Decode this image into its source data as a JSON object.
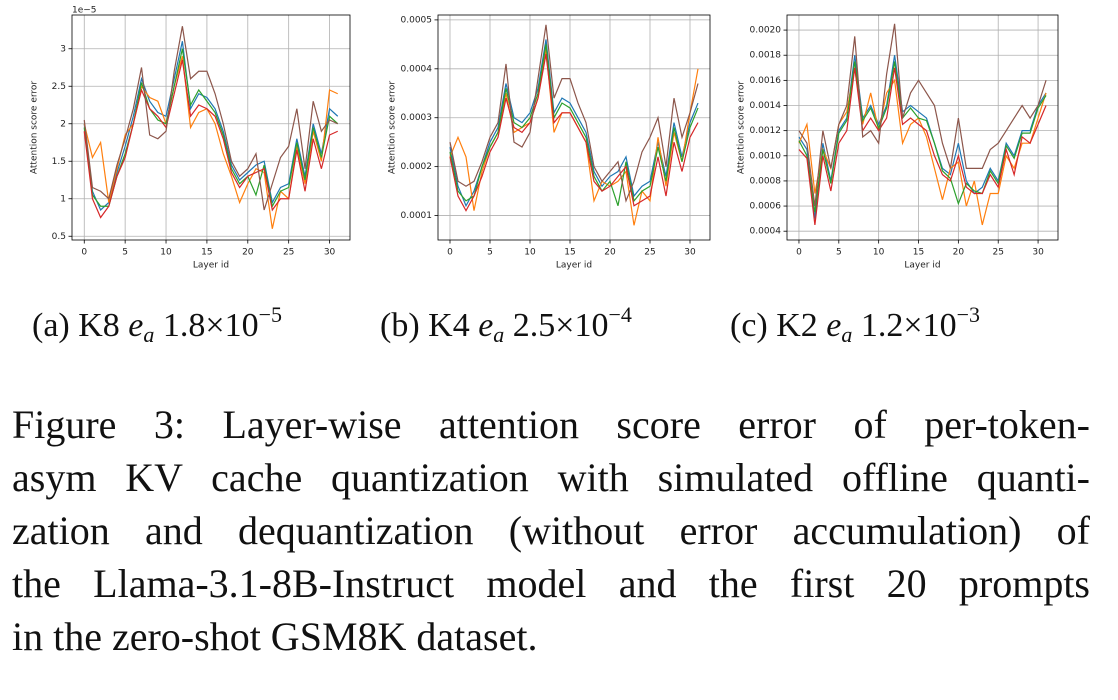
{
  "chart_data": [
    {
      "type": "line",
      "y_label": "Attention score error",
      "x_label": "Layer id",
      "offset_label": "1e−5",
      "xlim": [
        -1.5,
        32.5
      ],
      "xticks": [
        0,
        5,
        10,
        15,
        20,
        25,
        30
      ],
      "ylim": [
        0.45,
        3.45
      ],
      "yticks": [
        0.5,
        1.0,
        1.5,
        2.0,
        2.5,
        3.0
      ],
      "grid": true,
      "x": [
        0,
        1,
        2,
        3,
        4,
        5,
        6,
        7,
        8,
        9,
        10,
        11,
        12,
        13,
        14,
        15,
        16,
        17,
        18,
        19,
        20,
        21,
        22,
        23,
        24,
        25,
        26,
        27,
        28,
        29,
        30,
        31
      ],
      "series": [
        {
          "color": "#1f77b4",
          "values": [
            2.0,
            1.1,
            0.85,
            0.95,
            1.35,
            1.7,
            2.1,
            2.6,
            2.3,
            2.15,
            2.1,
            2.6,
            3.1,
            2.2,
            2.4,
            2.35,
            2.2,
            1.9,
            1.45,
            1.25,
            1.35,
            1.45,
            1.5,
            0.95,
            1.15,
            1.2,
            1.8,
            1.3,
            2.0,
            1.6,
            2.2,
            2.1
          ]
        },
        {
          "color": "#ff7f0e",
          "values": [
            2.0,
            1.55,
            1.75,
            0.95,
            1.4,
            1.85,
            2.0,
            2.5,
            2.35,
            2.3,
            2.0,
            2.5,
            2.9,
            1.95,
            2.15,
            2.2,
            2.0,
            1.6,
            1.3,
            0.95,
            1.2,
            1.4,
            1.35,
            0.6,
            1.1,
            1.0,
            1.7,
            1.2,
            1.9,
            1.5,
            2.45,
            2.4
          ]
        },
        {
          "color": "#2ca02c",
          "values": [
            1.95,
            1.05,
            0.9,
            0.9,
            1.3,
            1.6,
            2.0,
            2.55,
            2.2,
            2.05,
            2.0,
            2.5,
            3.0,
            2.25,
            2.45,
            2.3,
            2.15,
            1.85,
            1.4,
            1.2,
            1.3,
            1.05,
            1.45,
            0.9,
            1.1,
            1.15,
            1.75,
            1.25,
            1.95,
            1.55,
            2.1,
            2.0
          ]
        },
        {
          "color": "#d62728",
          "values": [
            1.9,
            1.0,
            0.75,
            0.9,
            1.3,
            1.55,
            2.0,
            2.45,
            2.2,
            2.1,
            1.95,
            2.4,
            2.85,
            2.1,
            2.25,
            2.2,
            2.1,
            1.8,
            1.35,
            1.15,
            1.3,
            1.35,
            1.4,
            0.85,
            1.0,
            1.0,
            1.65,
            1.1,
            1.8,
            1.4,
            1.85,
            1.9
          ]
        },
        {
          "color": "#8c564b",
          "values": [
            2.05,
            1.15,
            1.1,
            1.0,
            1.45,
            1.8,
            2.2,
            2.75,
            1.85,
            1.8,
            1.9,
            2.7,
            3.3,
            2.6,
            2.7,
            2.7,
            2.4,
            2.0,
            1.5,
            1.3,
            1.4,
            1.6,
            0.85,
            1.2,
            1.55,
            1.7,
            2.2,
            1.4,
            2.3,
            1.9,
            2.05,
            2.0
          ]
        }
      ],
      "caption": {
        "label": "(a) K8",
        "symbol": "e",
        "subscript": "a",
        "value": "1.8×10",
        "exponent": "−5"
      }
    },
    {
      "type": "line",
      "y_label": "Attention score error",
      "x_label": "Layer id",
      "xlim": [
        -1.5,
        32.5
      ],
      "xticks": [
        0,
        5,
        10,
        15,
        20,
        25,
        30
      ],
      "ylim": [
        5e-05,
        0.00051
      ],
      "yticks": [
        0.0001,
        0.0002,
        0.0003,
        0.0004,
        0.0005
      ],
      "grid": true,
      "x": [
        0,
        1,
        2,
        3,
        4,
        5,
        6,
        7,
        8,
        9,
        10,
        11,
        12,
        13,
        14,
        15,
        16,
        17,
        18,
        19,
        20,
        21,
        22,
        23,
        24,
        25,
        26,
        27,
        28,
        29,
        30,
        31
      ],
      "series": [
        {
          "color": "#1f77b4",
          "values": [
            0.00024,
            0.00016,
            0.00012,
            0.00015,
            0.0002,
            0.00025,
            0.00028,
            0.00037,
            0.0003,
            0.00029,
            0.00031,
            0.00036,
            0.00046,
            0.00031,
            0.00034,
            0.00033,
            0.0003,
            0.00027,
            0.00019,
            0.00016,
            0.00018,
            0.00019,
            0.00022,
            0.00014,
            0.00016,
            0.00017,
            0.00025,
            0.00018,
            0.00029,
            0.00022,
            0.00029,
            0.00033
          ]
        },
        {
          "color": "#ff7f0e",
          "values": [
            0.00022,
            0.00026,
            0.00022,
            0.00011,
            0.00019,
            0.00024,
            0.00027,
            0.00035,
            0.00027,
            0.00028,
            0.00029,
            0.00034,
            0.00044,
            0.00027,
            0.00031,
            0.00031,
            0.00028,
            0.00025,
            0.00013,
            0.00017,
            0.00016,
            0.00017,
            0.00019,
            8e-05,
            0.00015,
            0.00013,
            0.00026,
            0.00016,
            0.00027,
            0.00021,
            0.00031,
            0.0004
          ]
        },
        {
          "color": "#2ca02c",
          "values": [
            0.00023,
            0.00015,
            0.00013,
            0.00014,
            0.0002,
            0.00024,
            0.00027,
            0.00036,
            0.00029,
            0.00028,
            0.0003,
            0.00035,
            0.00045,
            0.0003,
            0.00033,
            0.00032,
            0.00029,
            0.00026,
            0.00018,
            0.00015,
            0.00017,
            0.00012,
            0.00021,
            0.00013,
            0.00015,
            0.00016,
            0.00024,
            0.00017,
            0.00028,
            0.00021,
            0.00028,
            0.00032
          ]
        },
        {
          "color": "#d62728",
          "values": [
            0.00022,
            0.00014,
            0.00011,
            0.00014,
            0.00018,
            0.00023,
            0.00026,
            0.00034,
            0.00028,
            0.00027,
            0.00029,
            0.00034,
            0.00043,
            0.00029,
            0.00031,
            0.00031,
            0.00028,
            0.00025,
            0.00017,
            0.00015,
            0.00016,
            0.00018,
            0.0002,
            0.00012,
            0.00013,
            0.00014,
            0.00022,
            0.00014,
            0.00025,
            0.00019,
            0.00026,
            0.00029
          ]
        },
        {
          "color": "#8c564b",
          "values": [
            0.00025,
            0.00017,
            0.00016,
            0.00017,
            0.00021,
            0.00026,
            0.00029,
            0.00041,
            0.00025,
            0.00024,
            0.00027,
            0.00038,
            0.00049,
            0.00034,
            0.00038,
            0.00038,
            0.00033,
            0.00029,
            0.0002,
            0.00017,
            0.00019,
            0.00021,
            0.00013,
            0.00017,
            0.00023,
            0.00026,
            0.0003,
            0.0002,
            0.00034,
            0.00026,
            0.00031,
            0.00037
          ]
        }
      ],
      "caption": {
        "label": "(b) K4",
        "symbol": "e",
        "subscript": "a",
        "value": "2.5×10",
        "exponent": "−4"
      }
    },
    {
      "type": "line",
      "y_label": "Attention score error",
      "x_label": "Layer id",
      "xlim": [
        -1.5,
        32.5
      ],
      "xticks": [
        0,
        5,
        10,
        15,
        20,
        25,
        30
      ],
      "ylim": [
        0.00033,
        0.00212
      ],
      "yticks": [
        {
          "value": 0.0004,
          "label": "0.0004"
        },
        {
          "value": 0.0006,
          "label": "0.0006"
        },
        {
          "value": 0.0008,
          "label": "0.0008"
        },
        {
          "value": 0.001,
          "label": "0.0010"
        },
        {
          "value": 0.0012,
          "label": "0.0012"
        },
        {
          "value": 0.0014,
          "label": "0.0014"
        },
        {
          "value": 0.0016,
          "label": "0.0016"
        },
        {
          "value": 0.0018,
          "label": "0.0018"
        },
        {
          "value": 0.002,
          "label": "0.0020"
        }
      ],
      "grid": true,
      "x": [
        0,
        1,
        2,
        3,
        4,
        5,
        6,
        7,
        8,
        9,
        10,
        11,
        12,
        13,
        14,
        15,
        16,
        17,
        18,
        19,
        20,
        21,
        22,
        23,
        24,
        25,
        26,
        27,
        28,
        29,
        30,
        31
      ],
      "series": [
        {
          "color": "#1f77b4",
          "values": [
            0.00115,
            0.00105,
            0.0005,
            0.0011,
            0.0008,
            0.0012,
            0.0013,
            0.0018,
            0.0013,
            0.0014,
            0.00125,
            0.0014,
            0.0018,
            0.00135,
            0.0014,
            0.00135,
            0.0013,
            0.0011,
            0.0009,
            0.00085,
            0.0011,
            0.0008,
            0.0007,
            0.00075,
            0.0009,
            0.0008,
            0.0011,
            0.001,
            0.0012,
            0.0012,
            0.0014,
            0.0015
          ]
        },
        {
          "color": "#ff7f0e",
          "values": [
            0.0011,
            0.00125,
            0.0007,
            0.00105,
            0.0009,
            0.00125,
            0.00135,
            0.0017,
            0.00125,
            0.0015,
            0.0012,
            0.0015,
            0.0016,
            0.0011,
            0.00125,
            0.0013,
            0.00115,
            0.0009,
            0.00065,
            0.0009,
            0.00095,
            0.0006,
            0.0008,
            0.00045,
            0.0007,
            0.0007,
            0.001,
            0.0009,
            0.0011,
            0.0011,
            0.0013,
            0.0015
          ]
        },
        {
          "color": "#2ca02c",
          "values": [
            0.00112,
            0.001,
            0.00055,
            0.00105,
            0.00078,
            0.00118,
            0.00128,
            0.00175,
            0.00128,
            0.00138,
            0.00122,
            0.00138,
            0.00175,
            0.0013,
            0.00138,
            0.0013,
            0.00128,
            0.0011,
            0.00088,
            0.00082,
            0.00062,
            0.00078,
            0.00072,
            0.0007,
            0.00088,
            0.00078,
            0.00108,
            0.00098,
            0.00118,
            0.00118,
            0.00138,
            0.00148
          ]
        },
        {
          "color": "#d62728",
          "values": [
            0.00105,
            0.00098,
            0.00045,
            0.001,
            0.00072,
            0.0011,
            0.0012,
            0.0017,
            0.0012,
            0.0013,
            0.0012,
            0.0013,
            0.0017,
            0.00125,
            0.0013,
            0.00125,
            0.0012,
            0.001,
            0.00085,
            0.0008,
            0.001,
            0.00075,
            0.0007,
            0.0007,
            0.00085,
            0.00075,
            0.00105,
            0.00085,
            0.00115,
            0.0011,
            0.00125,
            0.0014
          ]
        },
        {
          "color": "#8c564b",
          "values": [
            0.0012,
            0.0011,
            0.0006,
            0.0012,
            0.0009,
            0.00125,
            0.0014,
            0.00195,
            0.00115,
            0.0012,
            0.0011,
            0.00165,
            0.00205,
            0.0013,
            0.0015,
            0.0016,
            0.0015,
            0.0014,
            0.0011,
            0.0009,
            0.0013,
            0.0009,
            0.0009,
            0.0009,
            0.00105,
            0.0011,
            0.0012,
            0.0013,
            0.0014,
            0.0013,
            0.0014,
            0.0016
          ]
        }
      ],
      "caption": {
        "label": "(c) K2",
        "symbol": "e",
        "subscript": "a",
        "value": "1.2×10",
        "exponent": "−3"
      }
    }
  ],
  "figure_caption": {
    "lines": [
      "Figure 3: Layer-wise attention score error of per-token-",
      "asym KV cache quantization with simulated offline quanti-",
      "zation and dequantization (without error accumulation) of",
      "the Llama-3.1-8B-Instruct model and the first 20 prompts",
      "in the zero-shot GSM8K dataset."
    ]
  }
}
